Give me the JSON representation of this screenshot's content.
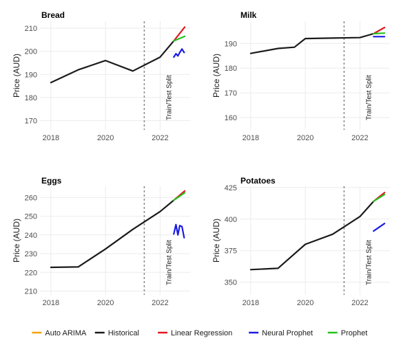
{
  "chart_data": [
    {
      "type": "line",
      "title": "Bread",
      "ylabel": "Price (AUD)",
      "xlim": [
        2017.6,
        2023.1
      ],
      "ylim": [
        166,
        213
      ],
      "xticks": [
        2018,
        2020,
        2022
      ],
      "yticks": [
        170,
        180,
        190,
        200,
        210
      ],
      "split_x": 2021.42,
      "split_label": "Train/Test Split",
      "series": [
        {
          "name": "Historical",
          "x": [
            2018.0,
            2019.0,
            2020.0,
            2021.0,
            2022.0,
            2022.5
          ],
          "y": [
            186.5,
            192.0,
            196.0,
            191.5,
            197.5,
            204.5
          ]
        },
        {
          "name": "Linear Regression",
          "x": [
            2022.5,
            2022.9
          ],
          "y": [
            204.5,
            210.5
          ]
        },
        {
          "name": "Prophet",
          "x": [
            2022.5,
            2022.9
          ],
          "y": [
            204.5,
            206.5
          ]
        },
        {
          "name": "Neural Prophet",
          "x": [
            2022.5,
            2022.58,
            2022.65,
            2022.72,
            2022.8,
            2022.88
          ],
          "y": [
            197.5,
            199.0,
            198.0,
            199.5,
            201.0,
            199.5
          ]
        }
      ]
    },
    {
      "type": "line",
      "title": "Milk",
      "ylabel": "Price (AUD)",
      "xlim": [
        2017.6,
        2023.1
      ],
      "ylim": [
        155,
        199
      ],
      "xticks": [
        2018,
        2020,
        2022
      ],
      "yticks": [
        160,
        170,
        180,
        190
      ],
      "split_x": 2021.42,
      "split_label": "Train/Test Split",
      "series": [
        {
          "name": "Historical",
          "x": [
            2018.0,
            2019.0,
            2019.6,
            2020.0,
            2021.0,
            2022.0,
            2022.5
          ],
          "y": [
            186.0,
            188.0,
            188.5,
            192.0,
            192.2,
            192.4,
            194.0
          ]
        },
        {
          "name": "Linear Regression",
          "x": [
            2022.5,
            2022.9
          ],
          "y": [
            194.0,
            196.5
          ]
        },
        {
          "name": "Prophet",
          "x": [
            2022.5,
            2022.9
          ],
          "y": [
            194.0,
            194.2
          ]
        },
        {
          "name": "Neural Prophet",
          "x": [
            2022.5,
            2022.9
          ],
          "y": [
            192.8,
            192.8
          ]
        }
      ]
    },
    {
      "type": "line",
      "title": "Eggs",
      "ylabel": "Price (AUD)",
      "xlim": [
        2017.6,
        2023.1
      ],
      "ylim": [
        208,
        266
      ],
      "xticks": [
        2018,
        2020,
        2022
      ],
      "yticks": [
        210,
        220,
        230,
        240,
        250,
        260
      ],
      "split_x": 2021.42,
      "split_label": "Train/Test Split",
      "series": [
        {
          "name": "Historical",
          "x": [
            2018.0,
            2019.0,
            2020.0,
            2021.0,
            2022.0,
            2022.5
          ],
          "y": [
            222.7,
            222.9,
            232.5,
            243.0,
            252.5,
            258.5
          ]
        },
        {
          "name": "Linear Regression",
          "x": [
            2022.5,
            2022.9
          ],
          "y": [
            258.5,
            263.5
          ]
        },
        {
          "name": "Prophet",
          "x": [
            2022.5,
            2022.9
          ],
          "y": [
            258.5,
            262.5
          ]
        },
        {
          "name": "Neural Prophet",
          "x": [
            2022.5,
            2022.58,
            2022.65,
            2022.72,
            2022.8,
            2022.88
          ],
          "y": [
            240.5,
            245.5,
            240.0,
            245.0,
            244.5,
            238.5
          ]
        }
      ]
    },
    {
      "type": "line",
      "title": "Potatoes",
      "ylabel": "Price (AUD)",
      "xlim": [
        2017.6,
        2023.1
      ],
      "ylim": [
        340,
        426
      ],
      "xticks": [
        2018,
        2020,
        2022
      ],
      "yticks": [
        350,
        375,
        400,
        425
      ],
      "split_x": 2021.42,
      "split_label": "Train/Test Split",
      "series": [
        {
          "name": "Historical",
          "x": [
            2018.0,
            2019.0,
            2020.0,
            2021.0,
            2022.0,
            2022.5
          ],
          "y": [
            360.0,
            361.0,
            380.0,
            388.0,
            402.0,
            414.0
          ]
        },
        {
          "name": "Linear Regression",
          "x": [
            2022.5,
            2022.9
          ],
          "y": [
            414.0,
            421.0
          ]
        },
        {
          "name": "Prophet",
          "x": [
            2022.5,
            2022.9
          ],
          "y": [
            414.0,
            419.5
          ]
        },
        {
          "name": "Neural Prophet",
          "x": [
            2022.5,
            2022.9
          ],
          "y": [
            390.5,
            396.5
          ]
        }
      ]
    }
  ],
  "legend": {
    "position": "bottom",
    "entries": [
      {
        "label": "Auto ARIMA",
        "color": "#f5a300"
      },
      {
        "label": "Historical",
        "color": "#1a1a1a"
      },
      {
        "label": "Linear Regression",
        "color": "#e0191f"
      },
      {
        "label": "Neural Prophet",
        "color": "#1a1ae6"
      },
      {
        "label": "Prophet",
        "color": "#22c21e"
      }
    ]
  },
  "grid": true
}
